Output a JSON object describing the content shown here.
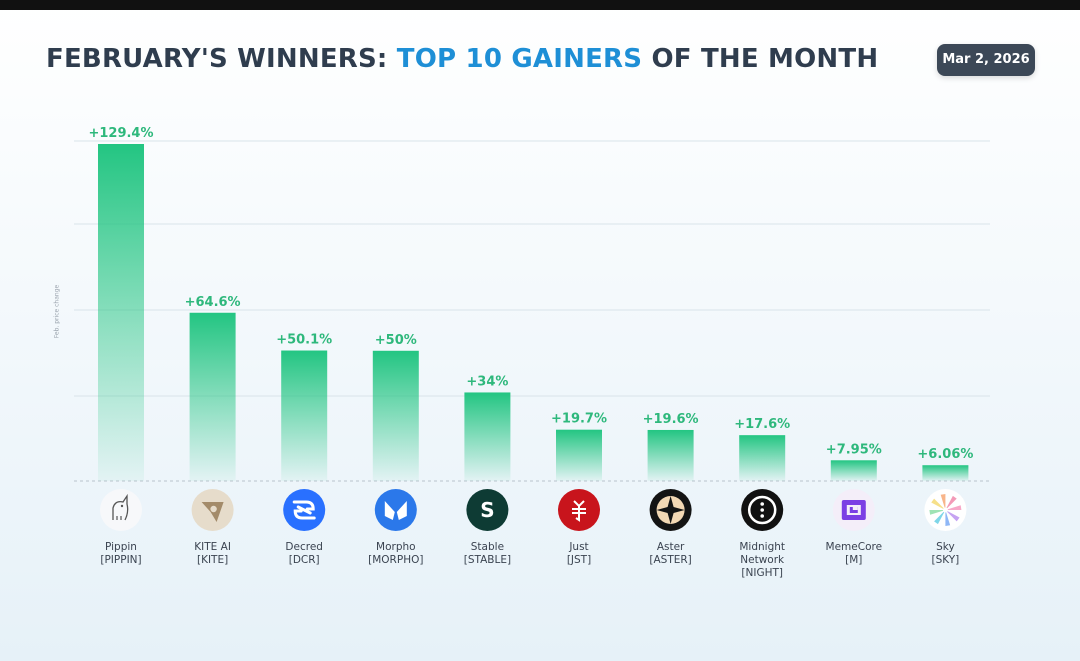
{
  "header": {
    "title_prefix": "FEBRUARY'S WINNERS: ",
    "title_accent": "TOP 10 GAINERS",
    "title_suffix": " OF THE MONTH",
    "date": "Mar 2, 2026"
  },
  "colors": {
    "accent": "#1e8fd6",
    "bar": "#2ecc8a",
    "value_label": "#2eb87c",
    "title": "#2f3d4e"
  },
  "chart_data": {
    "type": "bar",
    "title": "FEBRUARY'S WINNERS: TOP 10 GAINERS OF THE MONTH",
    "ylabel": "Feb. price change",
    "xlabel": "",
    "ylim": [
      0,
      135
    ],
    "grid": true,
    "categories": [
      {
        "name": "Pippin",
        "ticker": "[PIPPIN]",
        "icon": "pippin-unicorn-icon"
      },
      {
        "name": "KITE AI",
        "ticker": "[KITE]",
        "icon": "kite-ai-icon"
      },
      {
        "name": "Decred",
        "ticker": "[DCR]",
        "icon": "decred-icon"
      },
      {
        "name": "Morpho",
        "ticker": "[MORPHO]",
        "icon": "morpho-butterfly-icon"
      },
      {
        "name": "Stable",
        "ticker": "[STABLE]",
        "icon": "stable-icon"
      },
      {
        "name": "Just",
        "ticker": "[JST]",
        "icon": "just-icon"
      },
      {
        "name": "Aster",
        "ticker": "[ASTER]",
        "icon": "aster-icon"
      },
      {
        "name": "Midnight Network",
        "ticker": "[NIGHT]",
        "icon": "midnight-icon"
      },
      {
        "name": "MemeCore",
        "ticker": "[M]",
        "icon": "memecore-icon"
      },
      {
        "name": "Sky",
        "ticker": "[SKY]",
        "icon": "sky-icon"
      }
    ],
    "values": [
      129.4,
      64.6,
      50.1,
      50,
      34,
      19.7,
      19.6,
      17.6,
      7.95,
      6.06
    ],
    "value_labels": [
      "+129.4%",
      "+64.6%",
      "+50.1%",
      "+50%",
      "+34%",
      "+19.7%",
      "+19.6%",
      "+17.6%",
      "+7.95%",
      "+6.06%"
    ]
  }
}
